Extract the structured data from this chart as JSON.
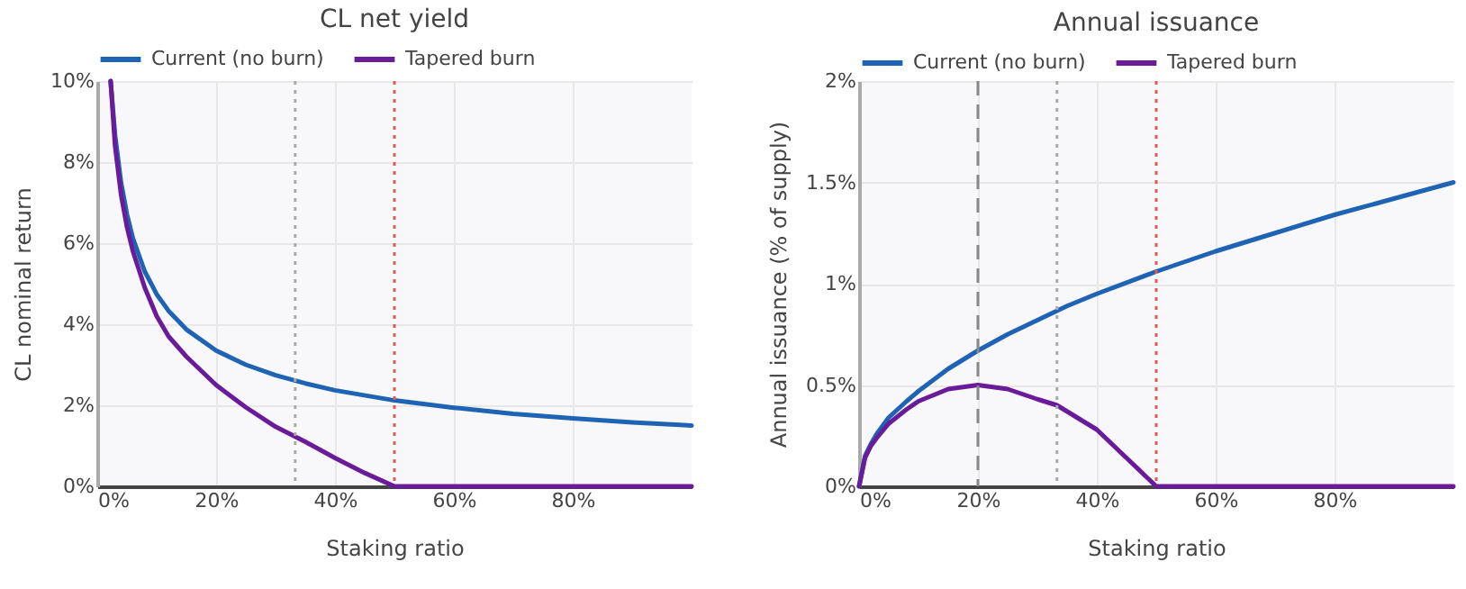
{
  "chart_data": [
    {
      "type": "line",
      "title": "CL net yield",
      "xlabel": "Staking ratio",
      "ylabel": "CL nominal return",
      "xlim": [
        0,
        100
      ],
      "xticks": [
        {
          "value": 0,
          "label": "0%"
        },
        {
          "value": 20,
          "label": "20%"
        },
        {
          "value": 40,
          "label": "40%"
        },
        {
          "value": 60,
          "label": "60%"
        },
        {
          "value": 80,
          "label": "80%"
        }
      ],
      "ylim": [
        0,
        10
      ],
      "yticks": [
        {
          "value": 0,
          "label": "0%"
        },
        {
          "value": 2,
          "label": "2%"
        },
        {
          "value": 4,
          "label": "4%"
        },
        {
          "value": 6,
          "label": "6%"
        },
        {
          "value": 8,
          "label": "8%"
        },
        {
          "value": 10,
          "label": "10%"
        }
      ],
      "grid": true,
      "legend": "top",
      "line_style": "solid",
      "marker": "none",
      "series": [
        {
          "name": "Current (no burn)",
          "color": "#1f63b5",
          "x": [
            2.25,
            3,
            4,
            5,
            6,
            8,
            10,
            12,
            15,
            20,
            25,
            30,
            35,
            40,
            50,
            60,
            70,
            80,
            90,
            100
          ],
          "values": [
            10,
            8.66,
            7.5,
            6.71,
            6.12,
            5.3,
            4.74,
            4.33,
            3.87,
            3.35,
            3.0,
            2.74,
            2.54,
            2.37,
            2.12,
            1.94,
            1.79,
            1.68,
            1.58,
            1.5
          ]
        },
        {
          "name": "Tapered burn",
          "color": "#6a1b9a",
          "x": [
            2.25,
            3,
            4,
            5,
            6,
            8,
            10,
            12,
            15,
            20,
            25,
            30,
            35,
            40,
            45,
            50,
            100
          ],
          "values": [
            10,
            8.4,
            7.2,
            6.4,
            5.8,
            4.9,
            4.2,
            3.7,
            3.2,
            2.5,
            1.95,
            1.47,
            1.1,
            0.7,
            0.33,
            0,
            0
          ]
        }
      ],
      "ref_lines": [
        {
          "axis": "x",
          "value": 33.3,
          "color": "#aaaaaa",
          "line_style": "dotted"
        },
        {
          "axis": "x",
          "value": 50,
          "color": "#e05a5a",
          "line_style": "dotted"
        }
      ]
    },
    {
      "type": "line",
      "title": "Annual issuance",
      "xlabel": "Staking ratio",
      "ylabel": "Annual issuance (% of supply)",
      "xlim": [
        0,
        100
      ],
      "xticks": [
        {
          "value": 0,
          "label": "0%"
        },
        {
          "value": 20,
          "label": "20%"
        },
        {
          "value": 40,
          "label": "40%"
        },
        {
          "value": 60,
          "label": "60%"
        },
        {
          "value": 80,
          "label": "80%"
        }
      ],
      "ylim": [
        0,
        2
      ],
      "yticks": [
        {
          "value": 0,
          "label": "0%"
        },
        {
          "value": 0.5,
          "label": "0.5%"
        },
        {
          "value": 1,
          "label": "1%"
        },
        {
          "value": 1.5,
          "label": "1.5%"
        },
        {
          "value": 2,
          "label": "2%"
        }
      ],
      "grid": true,
      "legend": "top",
      "line_style": "solid",
      "marker": "none",
      "series": [
        {
          "name": "Current (no burn)",
          "color": "#1f63b5",
          "x": [
            0,
            1,
            2,
            3,
            5,
            8,
            10,
            15,
            20,
            25,
            30,
            35,
            40,
            50,
            60,
            70,
            80,
            90,
            100
          ],
          "values": [
            0,
            0.15,
            0.21,
            0.26,
            0.34,
            0.42,
            0.47,
            0.58,
            0.67,
            0.75,
            0.82,
            0.89,
            0.95,
            1.06,
            1.16,
            1.25,
            1.34,
            1.42,
            1.5
          ]
        },
        {
          "name": "Tapered burn",
          "color": "#6a1b9a",
          "x": [
            0,
            1,
            2,
            3,
            5,
            8,
            10,
            15,
            20,
            25,
            30,
            33.3,
            40,
            45,
            50,
            100
          ],
          "values": [
            0,
            0.14,
            0.2,
            0.24,
            0.31,
            0.38,
            0.42,
            0.48,
            0.5,
            0.48,
            0.43,
            0.4,
            0.28,
            0.14,
            0,
            0
          ]
        }
      ],
      "ref_lines": [
        {
          "axis": "x",
          "value": 20,
          "color": "#888888",
          "line_style": "dashed"
        },
        {
          "axis": "x",
          "value": 33.3,
          "color": "#aaaaaa",
          "line_style": "dotted"
        },
        {
          "axis": "x",
          "value": 50,
          "color": "#e05a5a",
          "line_style": "dotted"
        }
      ]
    }
  ]
}
